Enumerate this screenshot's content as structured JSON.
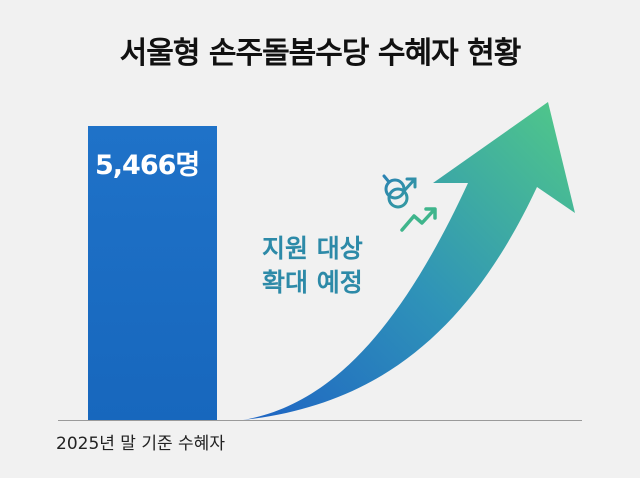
{
  "title": "서울형 손주돌봄수당 수혜자 현황",
  "chart_data": {
    "type": "bar",
    "categories": [
      "2025년 말 기준 수혜자"
    ],
    "values": [
      5466
    ],
    "data_labels": [
      "5,466명"
    ],
    "trend": "increasing",
    "annotation_lines": [
      "지원 대상",
      "확대 예정"
    ],
    "colors": {
      "bar": "#1a6cc2",
      "arrow_start": "#1e63c4",
      "arrow_end": "#4ec48c",
      "icon": "#2a8fb0"
    }
  },
  "icons": [
    "gender-symbols-icon",
    "trend-up-arrow-icon",
    "growth-arrow-icon"
  ]
}
